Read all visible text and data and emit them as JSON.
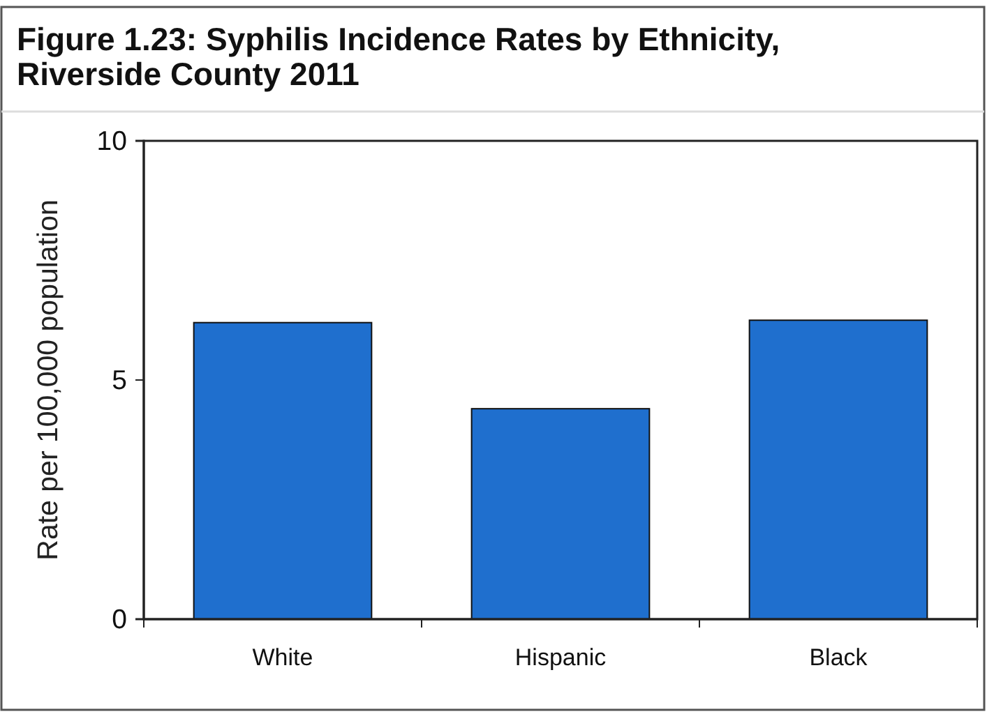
{
  "chart_data": {
    "type": "bar",
    "title": "Figure 1.23: Syphilis Incidence Rates by Ethnicity,\nRiverside County 2011",
    "ylabel": "Rate per 100,000 population",
    "categories": [
      "White",
      "Hispanic",
      "Black"
    ],
    "values": [
      6.2,
      4.4,
      6.25
    ],
    "color": "#1f6fce",
    "ylim": [
      0,
      10
    ],
    "yticks": [
      0,
      5,
      10
    ]
  }
}
